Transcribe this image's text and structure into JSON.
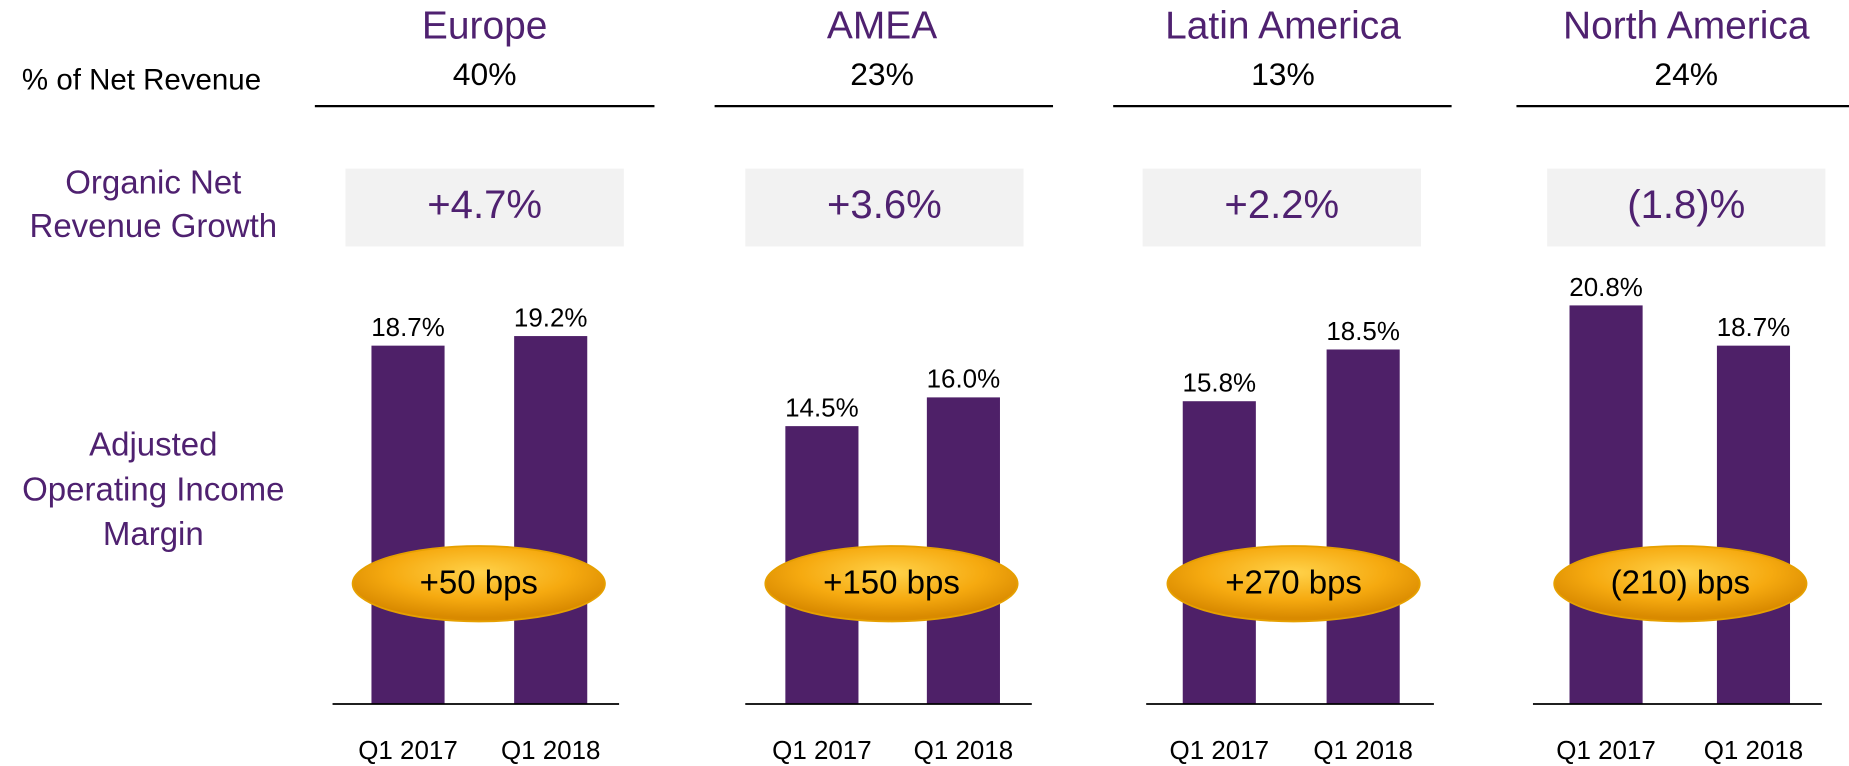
{
  "row_labels": {
    "net_revenue": "% of Net Revenue",
    "growth": [
      "Organic Net",
      "Revenue Growth"
    ],
    "margin": [
      "Adjusted",
      "Operating Income",
      "Margin"
    ]
  },
  "chart_data": [
    {
      "type": "bar",
      "title": "Europe",
      "net_revenue_share": 40,
      "net_revenue_share_label": "40%",
      "growth": 4.7,
      "growth_label": "+4.7%",
      "categories": [
        "Q1 2017",
        "Q1 2018"
      ],
      "values": [
        18.7,
        19.2
      ],
      "value_labels": [
        "18.7%",
        "19.2%"
      ],
      "change": 50,
      "change_label": "+50 bps",
      "color": "#4e2068"
    },
    {
      "type": "bar",
      "title": "AMEA",
      "net_revenue_share": 23,
      "net_revenue_share_label": "23%",
      "growth": 3.6,
      "growth_label": "+3.6%",
      "categories": [
        "Q1 2017",
        "Q1 2018"
      ],
      "values": [
        14.5,
        16.0
      ],
      "value_labels": [
        "14.5%",
        "16.0%"
      ],
      "change": 150,
      "change_label": "+150 bps",
      "color": "#4e2068"
    },
    {
      "type": "bar",
      "title": "Latin America",
      "net_revenue_share": 13,
      "net_revenue_share_label": "13%",
      "growth": 2.2,
      "growth_label": "+2.2%",
      "categories": [
        "Q1 2017",
        "Q1 2018"
      ],
      "values": [
        15.8,
        18.5
      ],
      "value_labels": [
        "15.8%",
        "18.5%"
      ],
      "change": 270,
      "change_label": "+270 bps",
      "color": "#4e2068"
    },
    {
      "type": "bar",
      "title": "North America",
      "net_revenue_share": 24,
      "net_revenue_share_label": "24%",
      "growth": -1.8,
      "growth_label": "(1.8)%",
      "categories": [
        "Q1 2017",
        "Q1 2018"
      ],
      "values": [
        20.8,
        18.7
      ],
      "value_labels": [
        "20.8%",
        "18.7%"
      ],
      "change": -210,
      "change_label": "(210) bps",
      "color": "#4e2068"
    }
  ]
}
